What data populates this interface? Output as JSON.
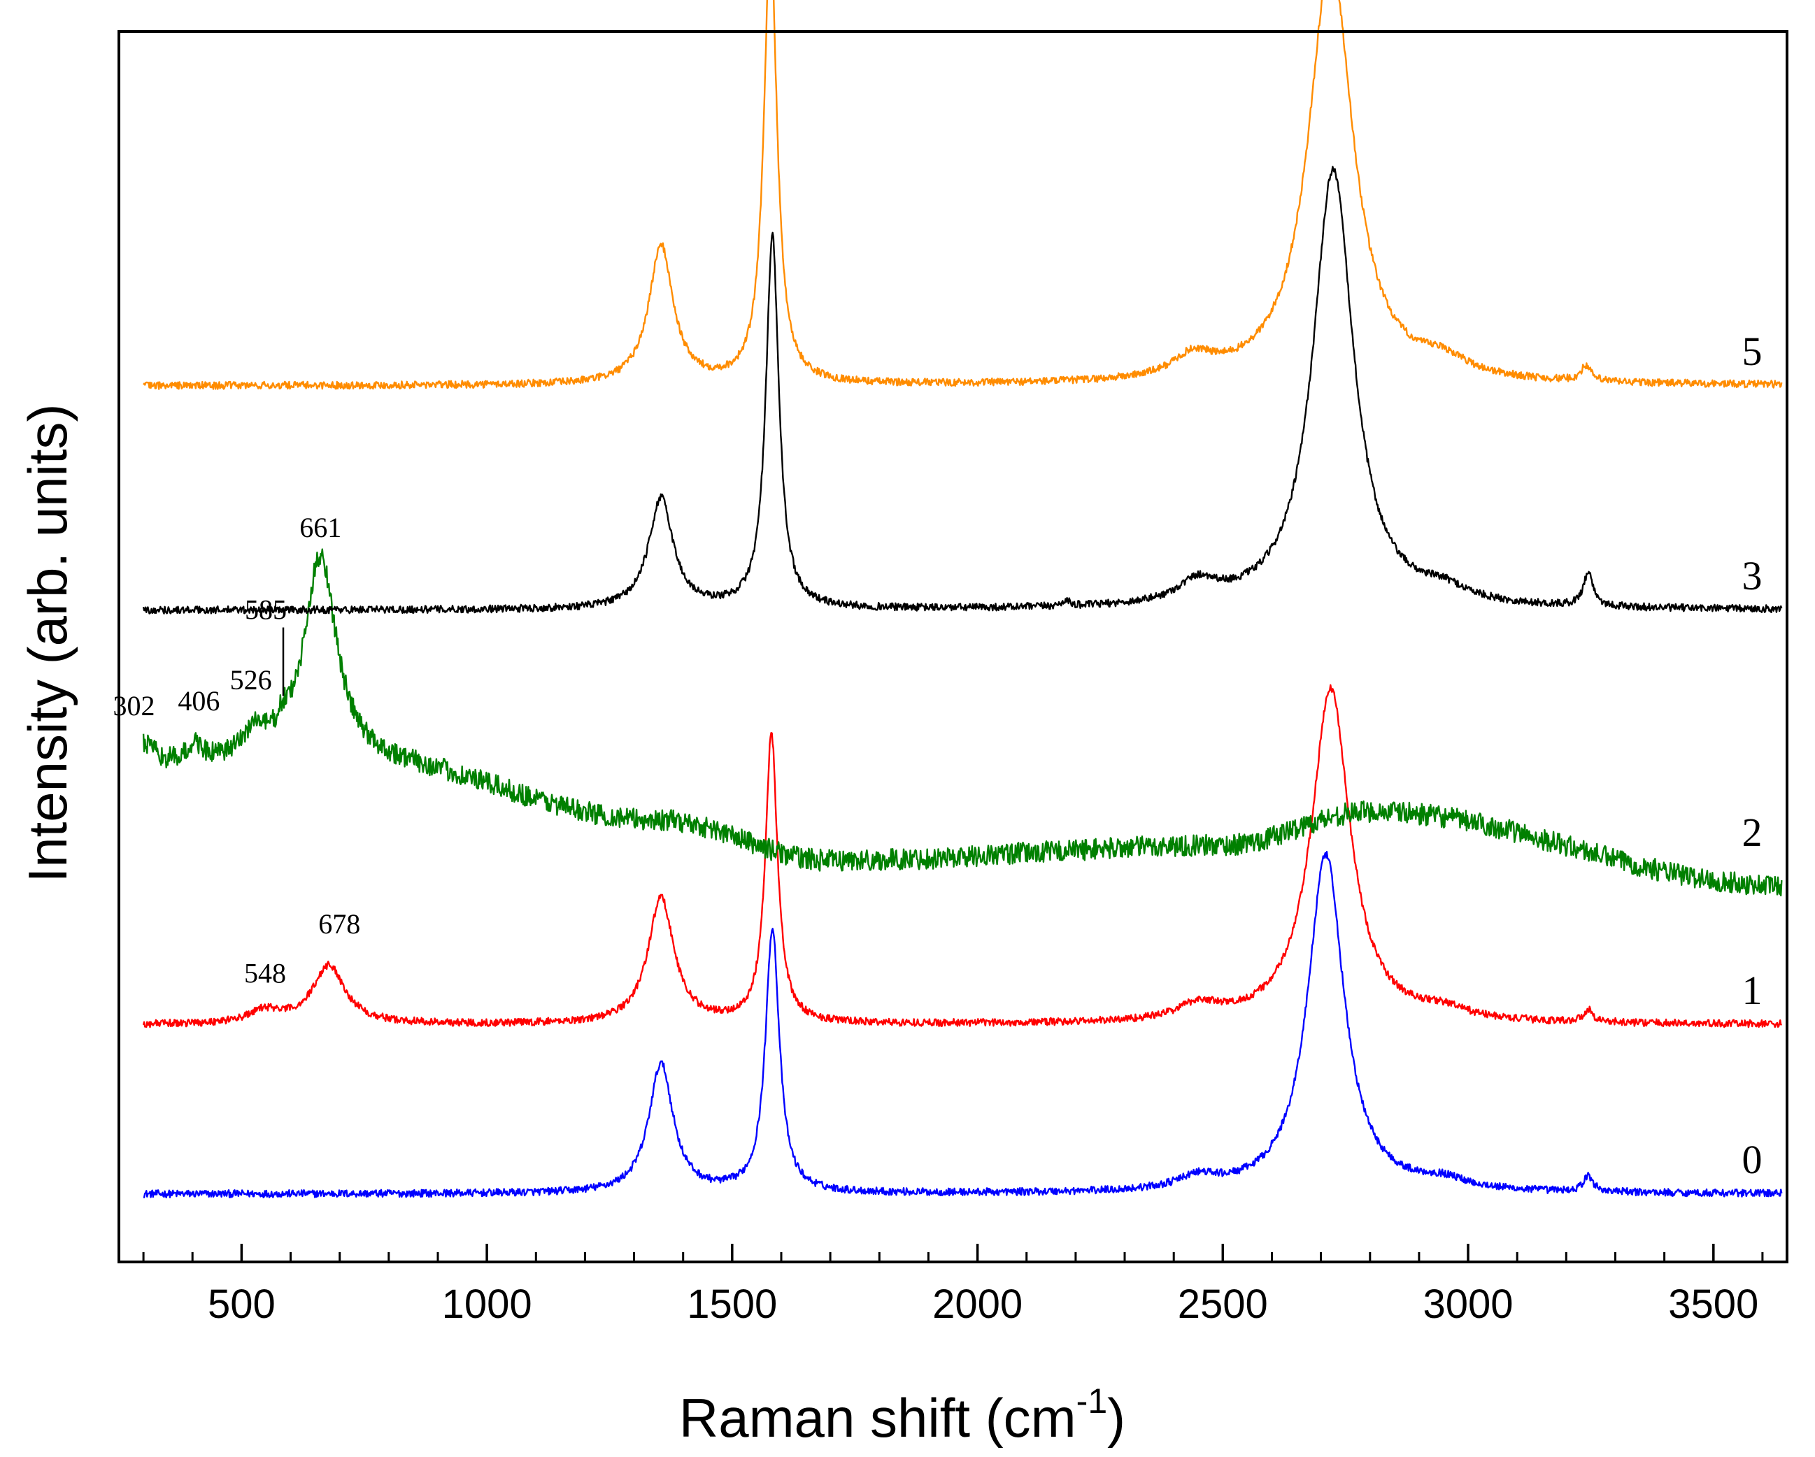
{
  "chart_data": {
    "type": "line",
    "title": "",
    "xlabel": "Raman shift (cm",
    "xlabel_sup": "-1",
    "xlabel_close": ")",
    "ylabel": "Intensity (arb. units)",
    "xlim": [
      250,
      3650
    ],
    "x_major_ticks": [
      500,
      1000,
      1500,
      2000,
      2500,
      3000,
      3500
    ],
    "x_tick_labels": [
      "500",
      "1000",
      "1500",
      "2000",
      "2500",
      "3000",
      "3500"
    ],
    "x_minor_step": 100,
    "y_ticks": "none",
    "grid": false,
    "legend": "none",
    "colors": {
      "0": "#0000ff",
      "1": "#ff0000",
      "2": "#008000",
      "3": "#000000",
      "5": "#ff8c00"
    },
    "series": [
      {
        "name": "0",
        "label": "0",
        "color": "#0000ff",
        "baseline": 0.0,
        "x_range": [
          300,
          3640
        ],
        "peaks": [
          {
            "x": 1355,
            "h": 0.42,
            "w": 30
          },
          {
            "x": 1582,
            "h": 0.86,
            "w": 17
          },
          {
            "x": 2450,
            "h": 0.04,
            "w": 50
          },
          {
            "x": 2710,
            "h": 1.1,
            "w": 45
          },
          {
            "x": 2950,
            "h": 0.03,
            "w": 60
          },
          {
            "x": 3245,
            "h": 0.05,
            "w": 12
          }
        ]
      },
      {
        "name": "1",
        "label": "1",
        "color": "#ff0000",
        "baseline": 0.0,
        "x_range": [
          300,
          3640
        ],
        "peaks": [
          {
            "x": 548,
            "h": 0.04,
            "w": 40
          },
          {
            "x": 678,
            "h": 0.19,
            "w": 40
          },
          {
            "x": 1355,
            "h": 0.41,
            "w": 32
          },
          {
            "x": 1580,
            "h": 0.94,
            "w": 15
          },
          {
            "x": 2450,
            "h": 0.05,
            "w": 50
          },
          {
            "x": 2720,
            "h": 1.09,
            "w": 48
          },
          {
            "x": 2950,
            "h": 0.03,
            "w": 60
          },
          {
            "x": 3245,
            "h": 0.04,
            "w": 12
          }
        ],
        "annotations": [
          "548",
          "678"
        ]
      },
      {
        "name": "2",
        "label": "2",
        "color": "#008000",
        "baseline_points": [
          [
            300,
            0.32
          ],
          [
            750,
            0.33
          ],
          [
            1350,
            0.15
          ],
          [
            1700,
            0.02
          ],
          [
            2500,
            0.07
          ],
          [
            2800,
            0.18
          ],
          [
            3640,
            -0.06
          ]
        ],
        "x_range": [
          300,
          3640
        ],
        "peaks": [
          {
            "x": 302,
            "h": 0.07,
            "w": 25
          },
          {
            "x": 406,
            "h": 0.06,
            "w": 20
          },
          {
            "x": 526,
            "h": 0.09,
            "w": 30
          },
          {
            "x": 585,
            "h": 0.05,
            "w": 15
          },
          {
            "x": 661,
            "h": 0.68,
            "w": 40
          }
        ],
        "annotations": [
          "302",
          "406",
          "526",
          "585",
          "661"
        ]
      },
      {
        "name": "3",
        "label": "3",
        "color": "#000000",
        "baseline": 0.0,
        "x_range": [
          300,
          3640
        ],
        "peaks": [
          {
            "x": 1355,
            "h": 0.36,
            "w": 30
          },
          {
            "x": 1582,
            "h": 1.21,
            "w": 16
          },
          {
            "x": 2180,
            "h": 0.02,
            "w": 8
          },
          {
            "x": 2450,
            "h": 0.07,
            "w": 50
          },
          {
            "x": 2725,
            "h": 1.43,
            "w": 50
          },
          {
            "x": 2950,
            "h": 0.04,
            "w": 60
          },
          {
            "x": 3245,
            "h": 0.11,
            "w": 12
          }
        ]
      },
      {
        "name": "5",
        "label": "5",
        "color": "#ff8c00",
        "baseline": 0.0,
        "x_range": [
          300,
          3640
        ],
        "peaks": [
          {
            "x": 1355,
            "h": 0.45,
            "w": 30
          },
          {
            "x": 1578,
            "h": 1.46,
            "w": 16
          },
          {
            "x": 2440,
            "h": 0.07,
            "w": 50
          },
          {
            "x": 2720,
            "h": 1.38,
            "w": 55
          },
          {
            "x": 2950,
            "h": 0.05,
            "w": 60
          },
          {
            "x": 3240,
            "h": 0.05,
            "w": 12
          }
        ]
      }
    ]
  }
}
